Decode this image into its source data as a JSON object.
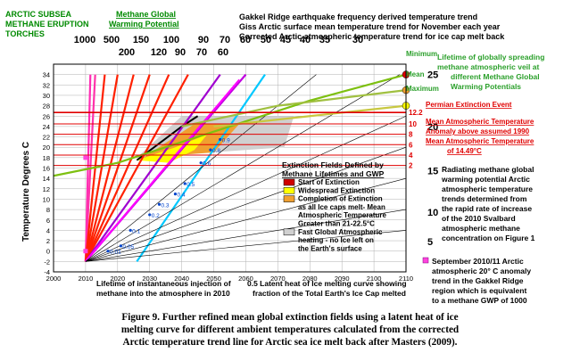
{
  "chart_data": {
    "type": "line",
    "ylabel": "Temperature Degrees C",
    "xlim": [
      2000,
      2110
    ],
    "ylim": [
      -4,
      36
    ],
    "x_ticks": [
      2000,
      2010,
      2020,
      2030,
      2040,
      2050,
      2060,
      2070,
      2080,
      2090,
      2100,
      2110
    ],
    "y_ticks": [
      -4,
      -2,
      0,
      2,
      4,
      6,
      8,
      10,
      12,
      14,
      16,
      18,
      20,
      22,
      24,
      26,
      28,
      30,
      32,
      34
    ],
    "grid": true,
    "gwp_series": [
      {
        "label": "1000",
        "color": "#ff2db4",
        "x": [
          2010,
          2011.5
        ],
        "y": [
          -2,
          34
        ]
      },
      {
        "label": "500",
        "color": "#ff33aa",
        "x": [
          2010,
          2013
        ],
        "y": [
          -2,
          34
        ]
      },
      {
        "label": "200",
        "color": "#ff2000",
        "x": [
          2010,
          2016
        ],
        "y": [
          -2,
          34
        ]
      },
      {
        "label": "150",
        "color": "#ff2000",
        "x": [
          2010,
          2020
        ],
        "y": [
          -2,
          34
        ]
      },
      {
        "label": "120",
        "color": "#ff2000",
        "x": [
          2010,
          2025
        ],
        "y": [
          -2,
          34
        ]
      },
      {
        "label": "100",
        "color": "#ff2000",
        "x": [
          2010,
          2030
        ],
        "y": [
          -2,
          34
        ]
      },
      {
        "label": "90",
        "color": "#ff2000",
        "x": [
          2010,
          2036
        ],
        "y": [
          -2,
          34
        ]
      },
      {
        "label": "70",
        "color": "#ff2000",
        "x": [
          2010,
          2042
        ],
        "y": [
          -2,
          34
        ]
      },
      {
        "label": "60",
        "color": "#a000d0",
        "x": [
          2010,
          2052
        ],
        "y": [
          -2,
          34
        ]
      },
      {
        "label": "50",
        "color": "#c000e0",
        "x": [
          2010,
          2060
        ],
        "y": [
          -2,
          34
        ]
      },
      {
        "label": "45",
        "color": "#ff00ff",
        "x": [
          2010,
          2058
        ],
        "y": [
          -2,
          33
        ]
      },
      {
        "label": "40",
        "color": "#00c8ff",
        "x": [
          2026,
          2066
        ],
        "y": [
          -2,
          34
        ]
      },
      {
        "label": "35",
        "color": "#000000",
        "x": [
          2010,
          2082
        ],
        "y": [
          -2,
          34
        ]
      },
      {
        "label": "30",
        "color": "#000000",
        "x": [
          2010,
          2108
        ],
        "y": [
          -2,
          34
        ]
      },
      {
        "label": "25",
        "color": "#000000",
        "x": [
          2010,
          2110
        ],
        "y": [
          -2,
          26
        ]
      },
      {
        "label": "20",
        "color": "#000000",
        "x": [
          2010,
          2110
        ],
        "y": [
          -2,
          20
        ]
      },
      {
        "label": "15",
        "color": "#000000",
        "x": [
          2010,
          2110
        ],
        "y": [
          -2,
          14
        ]
      },
      {
        "label": "10",
        "color": "#000000",
        "x": [
          2010,
          2110
        ],
        "y": [
          -2,
          8
        ]
      },
      {
        "label": "5",
        "color": "#000000",
        "x": [
          2010,
          2110
        ],
        "y": [
          -2,
          4
        ]
      }
    ],
    "gwp_bottom_labels": [
      "1000",
      "500",
      "150",
      "100",
      "90",
      "70",
      "60",
      "50",
      "45",
      "40",
      "35",
      "30"
    ],
    "gwp_second_row": [
      "200",
      "120",
      "90",
      "70",
      "60"
    ],
    "gwp_right_labels": [
      {
        "label": "25",
        "y": 34
      },
      {
        "label": "20",
        "y": 24
      },
      {
        "label": "15",
        "y": 15.5
      },
      {
        "label": "10",
        "y": 7.5
      },
      {
        "label": "5",
        "y": 1.8
      }
    ],
    "lifetime_points": [
      {
        "label": "0.01",
        "x": 2017,
        "y": 0
      },
      {
        "label": "0.05",
        "x": 2021,
        "y": 1
      },
      {
        "label": "0.1",
        "x": 2024,
        "y": 4
      },
      {
        "label": "0.2",
        "x": 2030,
        "y": 7
      },
      {
        "label": "0.3",
        "x": 2033,
        "y": 9
      },
      {
        "label": "0.4",
        "x": 2038,
        "y": 11
      },
      {
        "label": "0.5",
        "x": 2041,
        "y": 13
      },
      {
        "label": "0.6",
        "x": 2046,
        "y": 17
      },
      {
        "label": "0.8",
        "x": 2049,
        "y": 19.5
      },
      {
        "label": "0.9",
        "x": 2052,
        "y": 21.5
      }
    ],
    "trend_lines": [
      {
        "name": "Maximum",
        "color": "#7dc010",
        "x": [
          2000,
          2020,
          2050,
          2080,
          2110
        ],
        "y": [
          14.5,
          17,
          23,
          29,
          34
        ]
      },
      {
        "name": "Mean",
        "color": "#a0c040",
        "x": [
          2040,
          2070,
          2110
        ],
        "y": [
          24,
          28,
          31
        ]
      },
      {
        "name": "Minimum",
        "color": "#c8c840",
        "x": [
          2050,
          2080,
          2110
        ],
        "y": [
          24,
          26,
          28
        ]
      }
    ],
    "horizontal_lines": [
      {
        "label": "12.2",
        "y": 26.7
      },
      {
        "label": "10",
        "y": 24.5
      },
      {
        "label": "8",
        "y": 22.5
      },
      {
        "label": "6",
        "y": 20.5
      },
      {
        "label": "4",
        "y": 18.5
      },
      {
        "label": "2",
        "y": 16.5
      }
    ],
    "permian_label": "Permian Extinction Event",
    "mean_anom_label_1": "Mean Atmospheric Temperature",
    "mean_anom_label_2": "Anomaly above assumed 1990",
    "mean_temp_label_1": "Mean Atmospheric Temperature",
    "mean_temp_label_2": "of 14.49°C",
    "lifetime_label_1": "Lifetime of globally spreading",
    "lifetime_label_2": "methane atmospheric veil at",
    "lifetime_label_3": "different Methane Global",
    "lifetime_label_4": "Warming Potentials",
    "min_label": "Minimum",
    "mean_label": "Mean",
    "max_label": "Maximum",
    "title_left_1": "ARCTIC SUBSEA",
    "title_left_2": "METHANE ERUPTION",
    "title_left_3": "TORCHES",
    "title_mgwp_1": "Methane Global",
    "title_mgwp_2": "Warming Potential",
    "title_top_1": "Gakkel Ridge earthquake frequency derived temperature trend",
    "title_top_2": "Giss Arctic surface mean temperature trend for November each year",
    "title_top_3": "Corrected Arctic atmospheric temperature trend for ice cap melt back",
    "legend": {
      "title_1": "Extinction Fields Defined by",
      "title_2": "Methane Lifetimes and GWP",
      "items": [
        {
          "label": "Start of Extinction",
          "color": "#d00000"
        },
        {
          "label": "Widespread Extinction",
          "color": "#ffff00"
        },
        {
          "label": "Completion of Extinction",
          "color": "#f0a030"
        },
        {
          "label": "as all Ice caps melt- Mean",
          "color": ""
        },
        {
          "label": "Atmospheric Temperature",
          "color": ""
        },
        {
          "label": "Greater than 21-22.5°C",
          "color": ""
        },
        {
          "label": "Fast Global Atmospheric",
          "color": "#d0d0d0"
        },
        {
          "label": "heating - no Ice left on",
          "color": ""
        },
        {
          "label": "the Earth's surface",
          "color": ""
        }
      ]
    },
    "radiating_text": [
      "Radiating methane global",
      "warming potential Arctic",
      "atmospheric temperature",
      "trends determined from",
      "the rapid rate of increase",
      "of the 2010 Svalbard",
      "atmospheric methane",
      "concentration on Figure 1"
    ],
    "sept_text": [
      "September 2010/11 Arctic",
      "atmospheric 20° C anomaly",
      "trend in the Gakkel Ridge",
      "region which is equivalent",
      "to a methane GWP of 1000"
    ],
    "lifetime_note_1": "Lifetime of instantaneous injection of",
    "lifetime_note_2": "methane into the atmosphere in 2010",
    "latent_note_1": "0.5 Latent heat of Ice melting curve showing",
    "latent_note_2": "fraction of the Total Earth's Ice Cap melted",
    "caption_1": "Figure 9.  Further refined mean global extinction fields using a latent heat of ice",
    "caption_2": "melting curve for different ambient temperatures calculated from the corrected",
    "caption_3": "Arctic temperature trend line for Arctic sea ice melt back after Masters (2009)."
  },
  "colors": {
    "red": "#e00000",
    "pink": "#ff33aa",
    "cyan": "#00c8ff",
    "green": "#008a00",
    "yellow": "#ffff00",
    "orange": "#f0a030",
    "grey": "#d0d0d0",
    "magenta_marker": "#ff44dd"
  }
}
